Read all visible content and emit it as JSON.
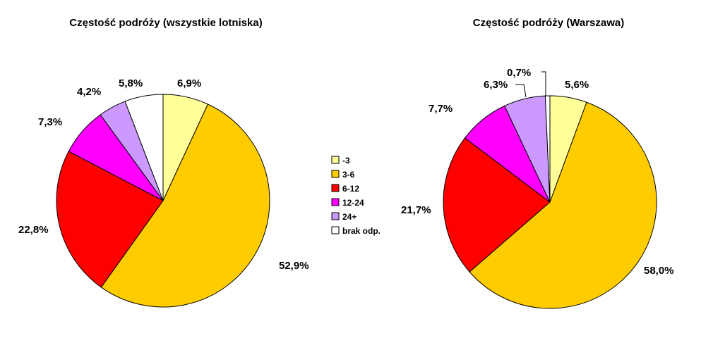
{
  "chart_data": [
    {
      "type": "pie",
      "title": "Częstość podróży (wszystkie lotniska)",
      "categories": [
        "-3",
        "3-6",
        "6-12",
        "12-24",
        "24+",
        "brak odp."
      ],
      "values": [
        6.9,
        52.9,
        22.8,
        7.3,
        4.2,
        5.8
      ],
      "labels": [
        "6,9%",
        "52,9%",
        "22,8%",
        "7,3%",
        "4,2%",
        "5,8%"
      ]
    },
    {
      "type": "pie",
      "title": "Częstość podróży (Warszawa)",
      "categories": [
        "-3",
        "3-6",
        "6-12",
        "12-24",
        "24+",
        "brak odp."
      ],
      "values": [
        5.6,
        58.0,
        21.7,
        7.7,
        6.3,
        0.7
      ],
      "labels": [
        "5,6%",
        "58,0%",
        "21,7%",
        "7,7%",
        "6,3%",
        "0,7%"
      ]
    }
  ],
  "legend": {
    "placement": "center",
    "items": [
      {
        "label": "-3",
        "color": "#ffff99"
      },
      {
        "label": "3-6",
        "color": "#ffcc00"
      },
      {
        "label": "6-12",
        "color": "#ff0000"
      },
      {
        "label": "12-24",
        "color": "#ff00ff"
      },
      {
        "label": "24+",
        "color": "#cc99ff"
      },
      {
        "label": "brak odp.",
        "color": "#ffffff"
      }
    ]
  }
}
